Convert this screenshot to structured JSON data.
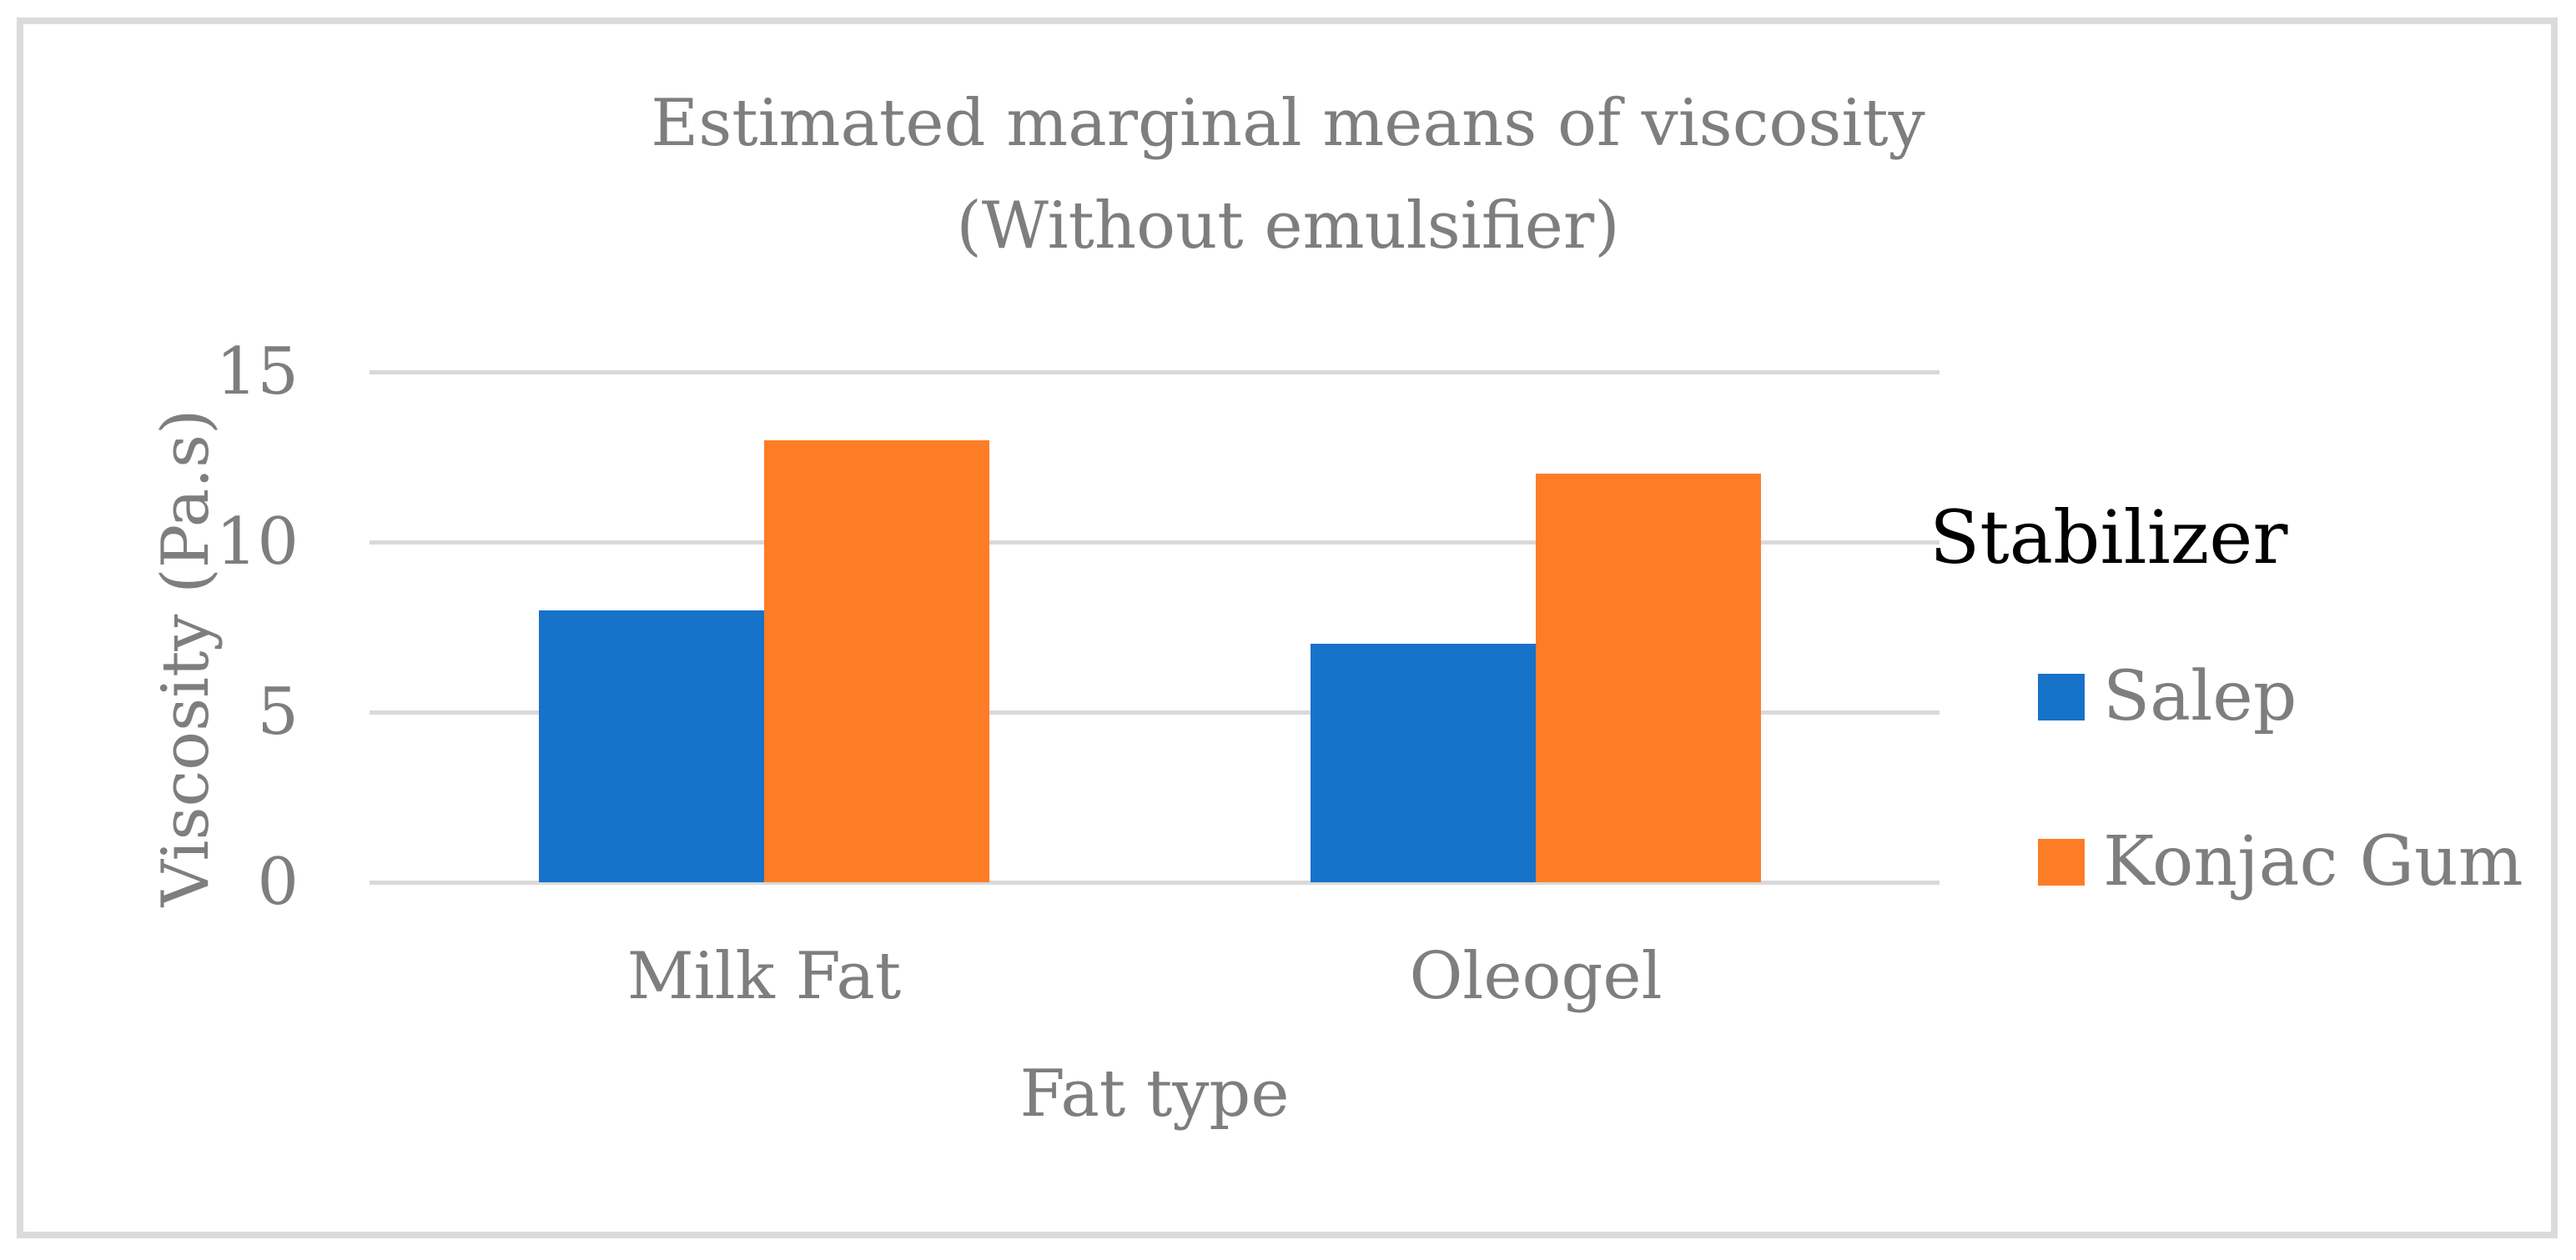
{
  "chart_data": {
    "type": "bar",
    "title": "Estimated marginal means of viscosity (Without emulsifier)",
    "title_lines": [
      "Estimated marginal means of viscosity",
      "(Without emulsifier)"
    ],
    "categories": [
      "Milk Fat",
      "Oleogel"
    ],
    "series": [
      {
        "name": "Salep",
        "color": "#1772C9",
        "values": [
          8,
          7
        ]
      },
      {
        "name": "Konjac Gum",
        "color": "#FC7D26",
        "values": [
          13,
          12
        ]
      }
    ],
    "xlabel": "Fat type",
    "ylabel": "Viscosity (Pa.s)",
    "ylim": [
      0,
      15
    ],
    "yticks": [
      0,
      5,
      10,
      15
    ],
    "ytick_labels_top_to_bottom": [
      "15",
      "10",
      "5",
      "0"
    ],
    "legend": {
      "title": "Stabilizer",
      "position": "right",
      "entries": [
        "Salep",
        "Konjac Gum"
      ]
    },
    "grid": "horizontal",
    "colors": {
      "gridline": "#D9D9D9",
      "frame_border": "#DBDBDB",
      "text_gray": "#7E7E7E",
      "legend_title_text": "#000000",
      "background": "#FFFFFF"
    }
  }
}
